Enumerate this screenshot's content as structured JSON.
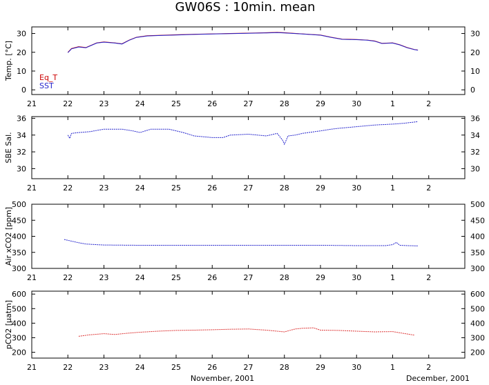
{
  "page": {
    "title": "GW06S : 10min. mean"
  },
  "footer": {
    "left": "November, 2001",
    "right": "December, 2001"
  },
  "colors": {
    "eq_t": "#cc0000",
    "sst": "#2222cc",
    "sal": "#2222cc",
    "air": "#2222cc",
    "pco2": "#dd3333",
    "purple": "#7733aa"
  },
  "chart_data": [
    {
      "type": "line",
      "ylabel": "Temp. [°C]",
      "ylim": [
        -2.5,
        33.5
      ],
      "yticks": [
        0,
        10,
        20,
        30
      ],
      "xticks": [
        "21",
        "22",
        "23",
        "24",
        "25",
        "26",
        "27",
        "28",
        "29",
        "30",
        "1",
        "2"
      ],
      "legend": [
        "Eq_T",
        "SST"
      ],
      "series": [
        {
          "name": "Eq_T",
          "color": "#cc0000",
          "x": [
            22.0,
            22.1,
            22.3,
            22.5,
            22.8,
            23.0,
            23.3,
            23.5,
            23.7,
            23.9,
            24.2,
            24.5,
            25.0,
            25.5,
            26.0,
            26.5,
            27.0,
            27.5,
            27.8,
            28.0,
            28.5,
            29.0,
            29.3,
            29.6,
            30.0,
            30.3,
            30.5,
            30.7,
            31.0,
            31.2,
            31.4,
            31.6,
            31.7
          ],
          "y": [
            20.0,
            22.0,
            23.0,
            22.5,
            25.0,
            25.5,
            25.0,
            24.5,
            26.5,
            28.0,
            28.8,
            29.0,
            29.3,
            29.6,
            29.8,
            30.0,
            30.2,
            30.4,
            30.6,
            30.4,
            29.8,
            29.2,
            28.0,
            27.0,
            26.8,
            26.5,
            26.0,
            24.8,
            25.0,
            24.0,
            22.5,
            21.5,
            21.2
          ]
        },
        {
          "name": "SST",
          "color": "#2222cc",
          "x": [
            22.0,
            22.1,
            22.3,
            22.5,
            22.8,
            23.0,
            23.3,
            23.5,
            23.7,
            23.9,
            24.2,
            24.5,
            25.0,
            25.5,
            26.0,
            26.5,
            27.0,
            27.5,
            27.8,
            28.0,
            28.5,
            29.0,
            29.3,
            29.6,
            30.0,
            30.3,
            30.5,
            30.7,
            31.0,
            31.2,
            31.4,
            31.6,
            31.7
          ],
          "y": [
            19.8,
            21.8,
            22.8,
            22.4,
            24.9,
            25.4,
            24.9,
            24.4,
            26.4,
            27.9,
            28.7,
            28.9,
            29.2,
            29.5,
            29.7,
            29.9,
            30.1,
            30.3,
            30.5,
            30.3,
            29.7,
            29.1,
            27.9,
            26.9,
            26.7,
            26.4,
            25.9,
            24.7,
            24.9,
            23.9,
            22.4,
            21.4,
            21.1
          ]
        }
      ]
    },
    {
      "type": "line",
      "ylabel": "SBE Sal.",
      "ylim": [
        28.8,
        36.2
      ],
      "yticks": [
        30,
        32,
        34,
        36
      ],
      "xticks": [
        "21",
        "22",
        "23",
        "24",
        "25",
        "26",
        "27",
        "28",
        "29",
        "30",
        "1",
        "2"
      ],
      "series": [
        {
          "name": "",
          "color": "#2222cc",
          "x": [
            22.0,
            22.05,
            22.1,
            22.3,
            22.6,
            23.0,
            23.5,
            23.8,
            24.0,
            24.3,
            24.8,
            25.2,
            25.5,
            26.0,
            26.3,
            26.5,
            27.0,
            27.5,
            27.8,
            27.95,
            28.0,
            28.1,
            28.3,
            28.5,
            29.0,
            29.3,
            29.5,
            30.0,
            30.5,
            31.0,
            31.3,
            31.5,
            31.7
          ],
          "y": [
            34.0,
            33.6,
            34.2,
            34.3,
            34.4,
            34.7,
            34.7,
            34.5,
            34.3,
            34.7,
            34.7,
            34.3,
            33.9,
            33.7,
            33.7,
            34.0,
            34.1,
            33.9,
            34.2,
            33.4,
            32.9,
            33.9,
            34.0,
            34.2,
            34.5,
            34.7,
            34.8,
            35.0,
            35.2,
            35.3,
            35.4,
            35.5,
            35.6
          ]
        }
      ]
    },
    {
      "type": "line",
      "ylabel": "Air xCO2 [ppm]",
      "ylim": [
        300,
        500
      ],
      "yticks": [
        300,
        350,
        400,
        450,
        500
      ],
      "xticks": [
        "21",
        "22",
        "23",
        "24",
        "25",
        "26",
        "27",
        "28",
        "29",
        "30",
        "1",
        "2"
      ],
      "series": [
        {
          "name": "",
          "color": "#2222cc",
          "x": [
            21.9,
            22.1,
            22.3,
            22.5,
            22.8,
            23.0,
            24.0,
            25.0,
            26.0,
            27.0,
            28.0,
            29.0,
            30.0,
            30.8,
            31.0,
            31.1,
            31.2,
            31.4,
            31.7
          ],
          "y": [
            390,
            385,
            380,
            376,
            374,
            373,
            372,
            372,
            372,
            372,
            372,
            372,
            371,
            371,
            374,
            381,
            372,
            371,
            370
          ]
        }
      ]
    },
    {
      "type": "line",
      "ylabel": "pCO2 [μatm]",
      "ylim": [
        160,
        620
      ],
      "yticks": [
        200,
        300,
        400,
        500,
        600
      ],
      "xticks": [
        "21",
        "22",
        "23",
        "24",
        "25",
        "26",
        "27",
        "28",
        "29",
        "30",
        "1",
        "2"
      ],
      "series": [
        {
          "name": "",
          "color": "#dd3333",
          "x": [
            22.3,
            22.6,
            23.0,
            23.3,
            23.6,
            24.0,
            24.5,
            25.0,
            25.5,
            26.0,
            26.5,
            27.0,
            27.5,
            27.8,
            28.0,
            28.3,
            28.5,
            28.8,
            29.0,
            29.5,
            30.0,
            30.5,
            31.0,
            31.3,
            31.6
          ],
          "y": [
            310,
            320,
            328,
            322,
            330,
            338,
            345,
            350,
            352,
            355,
            358,
            360,
            352,
            345,
            340,
            360,
            365,
            368,
            352,
            350,
            345,
            340,
            342,
            330,
            318
          ]
        }
      ]
    }
  ]
}
